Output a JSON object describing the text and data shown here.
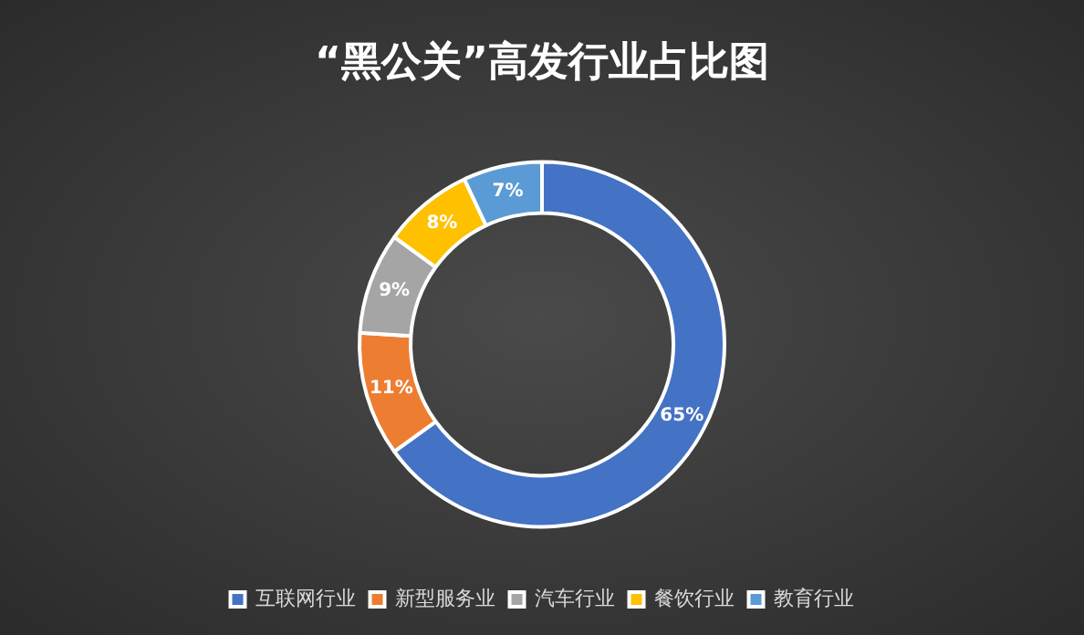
{
  "chart_data": {
    "type": "donut",
    "title": "“黑公关”高发行业占比图",
    "categories": [
      "互联网行业",
      "新型服务业",
      "汽车行业",
      "餐饮行业",
      "教育行业"
    ],
    "values": [
      65,
      11,
      9,
      8,
      7
    ],
    "value_labels": [
      "65%",
      "11%",
      "9%",
      "8%",
      "7%"
    ],
    "colors": [
      "#4472c4",
      "#ed7d31",
      "#a5a5a5",
      "#ffc000",
      "#5b9bd5"
    ],
    "legend": "bottom"
  }
}
